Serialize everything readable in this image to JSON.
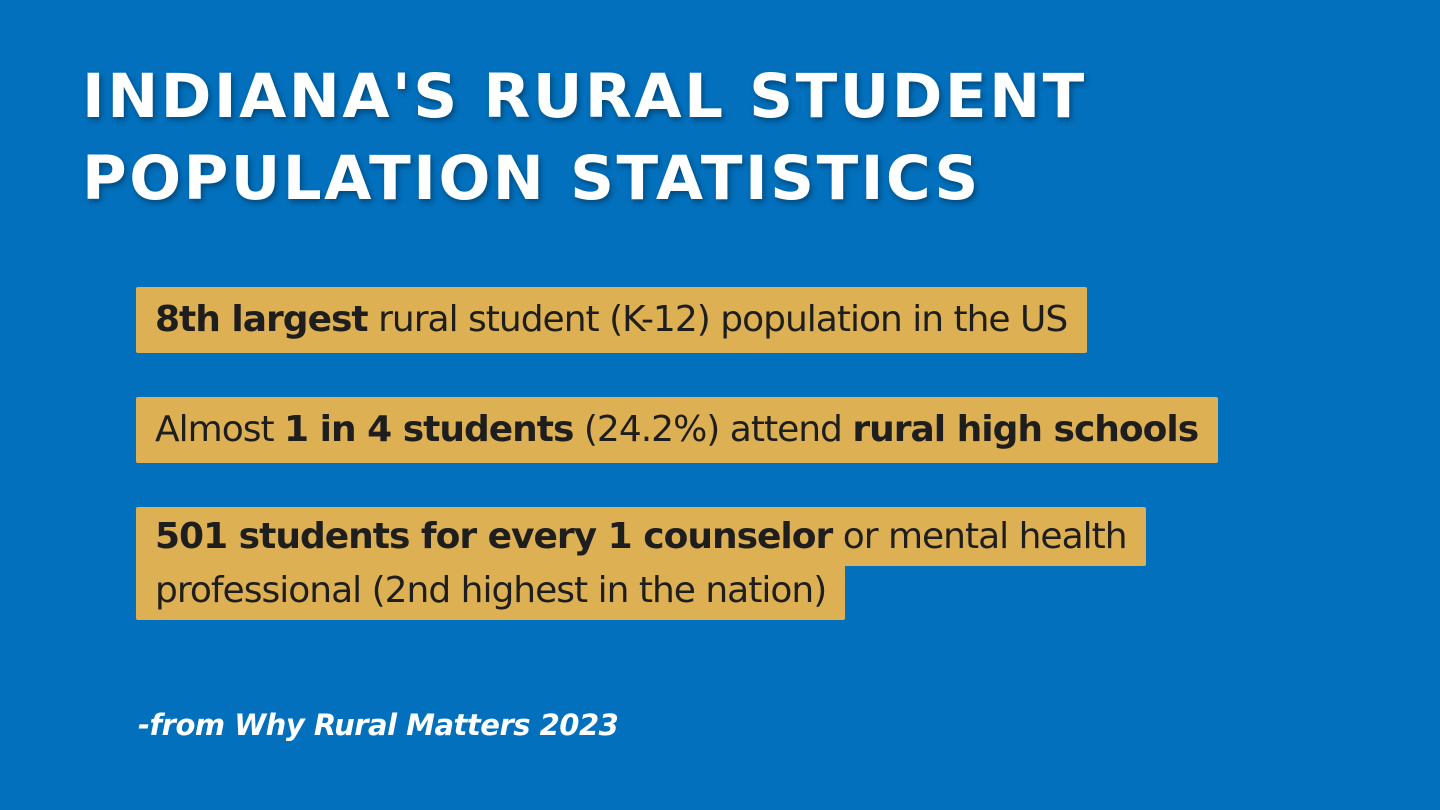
{
  "title": {
    "line1": "INDIANA'S RURAL STUDENT",
    "line2": "POPULATION STATISTICS"
  },
  "stats": [
    {
      "bold_a": "8th largest",
      "text_a": " rural student (K-12) population in the US"
    },
    {
      "text_a": "Almost ",
      "bold_a": "1 in 4 students",
      "text_b": " (24.2%) attend ",
      "bold_b": "rural high schools"
    },
    {
      "bold_a": "501 students for every 1 counselor",
      "text_a": " or mental health professional (2nd highest in the nation)"
    }
  ],
  "source": "-from Why Rural Matters 2023",
  "colors": {
    "background": "#0270bd",
    "highlight": "#ddb054",
    "title_text": "#ffffff",
    "stat_text": "#1e1e1e"
  }
}
